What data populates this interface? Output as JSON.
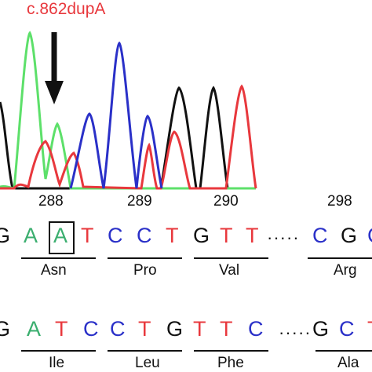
{
  "mutation_label": "c.862dupA",
  "colors": {
    "A": "#3aae6e",
    "C": "#2a30c8",
    "G": "#111111",
    "T": "#e8383d",
    "trace_green": "#5de06a",
    "trace_blue": "#2a30c8",
    "trace_black": "#111111",
    "trace_red": "#e8383d"
  },
  "arrow_icon": "down-arrow",
  "codon_numbers": [
    "288",
    "289",
    "290",
    "298"
  ],
  "mutant_row": {
    "bases": [
      "G",
      "A",
      "A",
      "T",
      "C",
      "C",
      "T",
      "G",
      "T",
      "T",
      "C",
      "G",
      "C"
    ],
    "ellipsis": "·····",
    "amino_acids": [
      "Asn",
      "Pro",
      "Val",
      "Arg"
    ]
  },
  "wildtype_row": {
    "bases": [
      "G",
      "A",
      "T",
      "C",
      "C",
      "T",
      "G",
      "T",
      "T",
      "C",
      "G",
      "C",
      "T"
    ],
    "ellipsis": "·····",
    "amino_acids": [
      "Ile",
      "Leu",
      "Phe",
      "Ala"
    ]
  }
}
